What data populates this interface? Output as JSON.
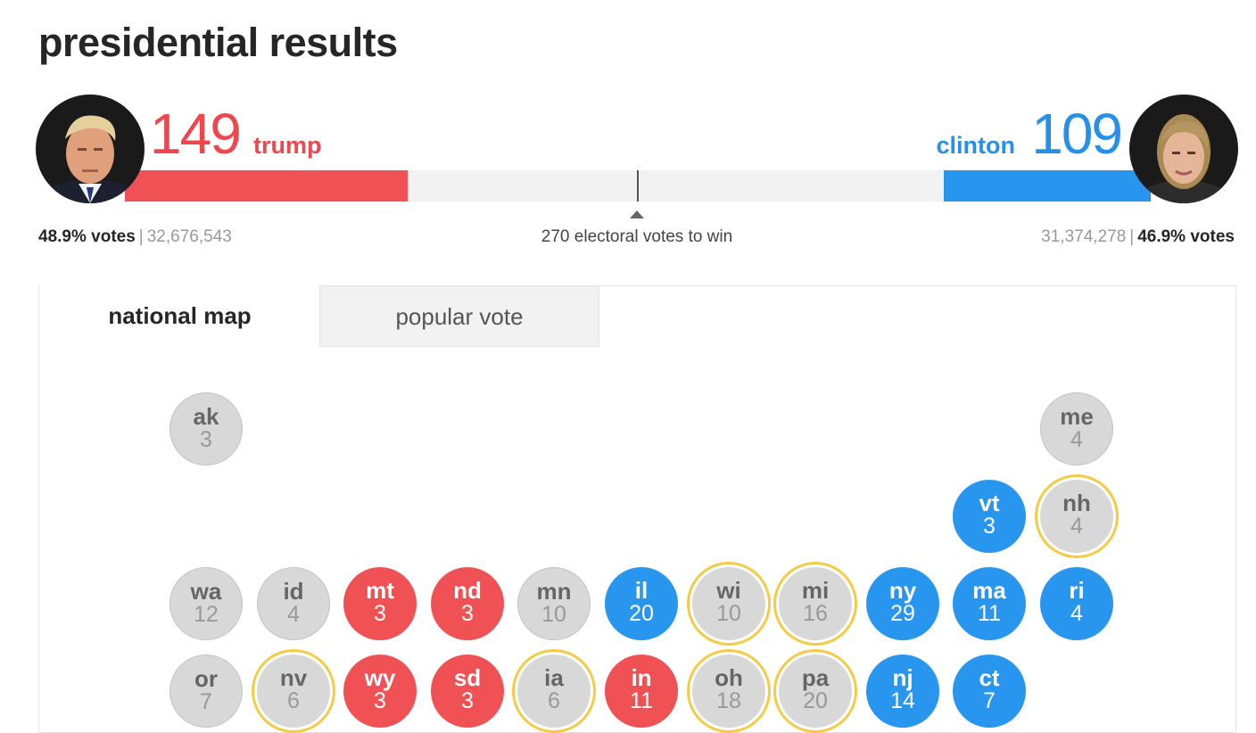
{
  "page": {
    "title": "presidential results"
  },
  "trump": {
    "count": "149",
    "name": "trump",
    "pct": "48.9% votes",
    "raw": "32,676,543",
    "share": 0.2759,
    "color": "#f05155"
  },
  "clinton": {
    "count": "109",
    "name": "clinton",
    "pct": "46.9% votes",
    "raw": "31,374,278",
    "share": 0.2019,
    "color": "#2896ef"
  },
  "separator": "|",
  "win_label": "270 electoral votes to win",
  "tabs": [
    {
      "label": "national map",
      "active": true
    },
    {
      "label": "popular vote",
      "active": false
    }
  ],
  "states": [
    {
      "abbr": "ak",
      "ev": "3",
      "status": "none",
      "col": 0,
      "row": 0
    },
    {
      "abbr": "me",
      "ev": "4",
      "status": "none",
      "col": 10,
      "row": 0
    },
    {
      "abbr": "vt",
      "ev": "3",
      "status": "dem",
      "col": 9,
      "row": 1
    },
    {
      "abbr": "nh",
      "ev": "4",
      "status": "battle",
      "col": 10,
      "row": 1
    },
    {
      "abbr": "wa",
      "ev": "12",
      "status": "none",
      "col": 0,
      "row": 2
    },
    {
      "abbr": "id",
      "ev": "4",
      "status": "none",
      "col": 1,
      "row": 2
    },
    {
      "abbr": "mt",
      "ev": "3",
      "status": "gop",
      "col": 2,
      "row": 2
    },
    {
      "abbr": "nd",
      "ev": "3",
      "status": "gop",
      "col": 3,
      "row": 2
    },
    {
      "abbr": "mn",
      "ev": "10",
      "status": "none",
      "col": 4,
      "row": 2
    },
    {
      "abbr": "il",
      "ev": "20",
      "status": "dem",
      "col": 5,
      "row": 2
    },
    {
      "abbr": "wi",
      "ev": "10",
      "status": "battle",
      "col": 6,
      "row": 2
    },
    {
      "abbr": "mi",
      "ev": "16",
      "status": "battle",
      "col": 7,
      "row": 2
    },
    {
      "abbr": "ny",
      "ev": "29",
      "status": "dem",
      "col": 8,
      "row": 2
    },
    {
      "abbr": "ma",
      "ev": "11",
      "status": "dem",
      "col": 9,
      "row": 2
    },
    {
      "abbr": "ri",
      "ev": "4",
      "status": "dem",
      "col": 10,
      "row": 2
    },
    {
      "abbr": "or",
      "ev": "7",
      "status": "none",
      "col": 0,
      "row": 3
    },
    {
      "abbr": "nv",
      "ev": "6",
      "status": "battle",
      "col": 1,
      "row": 3
    },
    {
      "abbr": "wy",
      "ev": "3",
      "status": "gop",
      "col": 2,
      "row": 3
    },
    {
      "abbr": "sd",
      "ev": "3",
      "status": "gop",
      "col": 3,
      "row": 3
    },
    {
      "abbr": "ia",
      "ev": "6",
      "status": "battle",
      "col": 4,
      "row": 3
    },
    {
      "abbr": "in",
      "ev": "11",
      "status": "gop",
      "col": 5,
      "row": 3
    },
    {
      "abbr": "oh",
      "ev": "18",
      "status": "battle",
      "col": 6,
      "row": 3
    },
    {
      "abbr": "pa",
      "ev": "20",
      "status": "battle",
      "col": 7,
      "row": 3
    },
    {
      "abbr": "nj",
      "ev": "14",
      "status": "dem",
      "col": 8,
      "row": 3
    },
    {
      "abbr": "ct",
      "ev": "7",
      "status": "dem",
      "col": 9,
      "row": 3
    }
  ]
}
